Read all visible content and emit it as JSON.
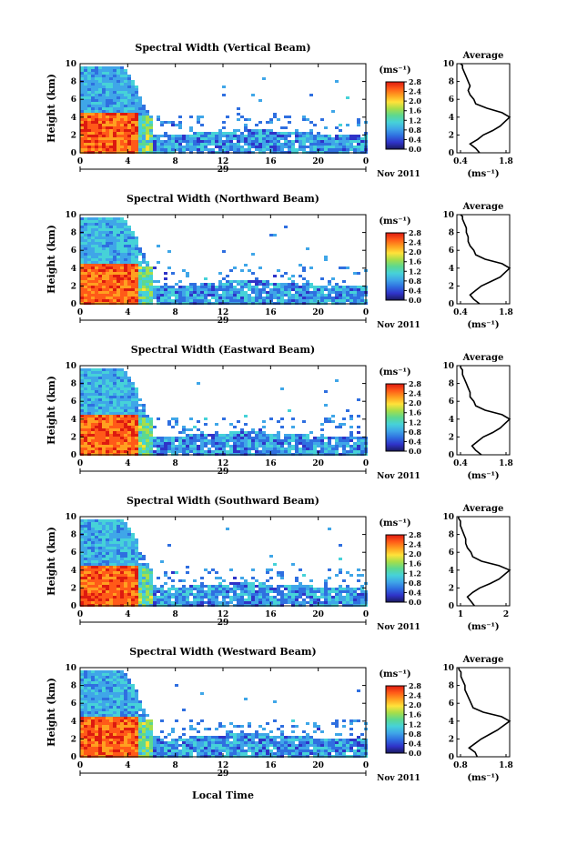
{
  "figure": {
    "xlabel": "Local Time",
    "date_suffix": "Nov 2011",
    "colorbar_unit": "(ms⁻¹)",
    "avg_title": "Average",
    "avg_unit": "(ms⁻¹)",
    "colorbar_ticks": [
      "2.8",
      "2.4",
      "2.0",
      "1.6",
      "1.2",
      "0.8",
      "0.4",
      "0.0"
    ],
    "colorbar_range": [
      0.0,
      2.8
    ],
    "colormap": [
      "#1a1a5e",
      "#2f33c8",
      "#2f6fe0",
      "#3fa6e8",
      "#46d2d8",
      "#5cd890",
      "#a6de4a",
      "#ffe23a",
      "#ffa020",
      "#ff5a18",
      "#dd1a10"
    ]
  },
  "chart_data": [
    {
      "type": "heatmap",
      "title": "Spectral Width (Vertical Beam)",
      "ylabel": "Height (km)",
      "xlabel": "Local Time",
      "x_ticks": [
        "0",
        "4",
        "8",
        "12",
        "16",
        "20",
        "0"
      ],
      "y_ticks": [
        "0",
        "2",
        "4",
        "6",
        "8",
        "10"
      ],
      "xlim": [
        0,
        24
      ],
      "ylim": [
        0,
        10
      ],
      "day_label": "29",
      "date_suffix": "Nov 2011",
      "colorbar_ticks": [
        "2.8",
        "2.4",
        "2.0",
        "1.6",
        "1.2",
        "0.8",
        "0.4",
        "0.0"
      ],
      "average_profile": {
        "xlim": [
          0.4,
          1.8
        ],
        "x_ticks": [
          "0.4",
          "1.8"
        ],
        "y_ticks": [
          "0",
          "2",
          "4",
          "6",
          "8",
          "10"
        ],
        "x": [
          1.0,
          0.9,
          0.75,
          0.95,
          1.1,
          1.35,
          1.55,
          1.8,
          1.6,
          1.2,
          0.9,
          0.85,
          0.75,
          0.7,
          0.75,
          0.7,
          0.65,
          0.6,
          0.55,
          0.55,
          0.5
        ],
        "y": [
          0,
          0.5,
          1,
          1.5,
          2,
          2.5,
          3,
          4,
          4.5,
          5,
          5.5,
          6,
          6.5,
          7,
          7.5,
          8,
          8.5,
          9,
          9.5,
          9.8,
          10
        ]
      }
    },
    {
      "type": "heatmap",
      "title": "Spectral Width (Northward Beam)",
      "ylabel": "Height (km)",
      "xlabel": "Local Time",
      "x_ticks": [
        "0",
        "4",
        "8",
        "12",
        "16",
        "20",
        "0"
      ],
      "y_ticks": [
        "0",
        "2",
        "4",
        "6",
        "8",
        "10"
      ],
      "xlim": [
        0,
        24
      ],
      "ylim": [
        0,
        10
      ],
      "day_label": "29",
      "date_suffix": "Nov 2011",
      "colorbar_ticks": [
        "2.8",
        "2.4",
        "2.0",
        "1.6",
        "1.2",
        "0.8",
        "0.4",
        "0.0"
      ],
      "average_profile": {
        "xlim": [
          0.4,
          1.8
        ],
        "x_ticks": [
          "0.4",
          "1.8"
        ],
        "y_ticks": [
          "0",
          "2",
          "4",
          "6",
          "8",
          "10"
        ],
        "x": [
          1.0,
          0.85,
          0.75,
          0.9,
          1.05,
          1.3,
          1.55,
          1.8,
          1.6,
          1.15,
          0.9,
          0.85,
          0.75,
          0.7,
          0.7,
          0.65,
          0.65,
          0.6,
          0.55,
          0.55,
          0.5
        ],
        "y": [
          0,
          0.5,
          1,
          1.5,
          2,
          2.5,
          3,
          4,
          4.5,
          5,
          5.5,
          6,
          6.5,
          7,
          7.5,
          8,
          8.5,
          9,
          9.5,
          9.8,
          10
        ]
      }
    },
    {
      "type": "heatmap",
      "title": "Spectral Width (Eastward Beam)",
      "ylabel": "Height (km)",
      "xlabel": "Local Time",
      "x_ticks": [
        "0",
        "4",
        "8",
        "12",
        "16",
        "20",
        "0"
      ],
      "y_ticks": [
        "0",
        "2",
        "4",
        "6",
        "8",
        "10"
      ],
      "xlim": [
        0,
        24
      ],
      "ylim": [
        0,
        10
      ],
      "day_label": "29",
      "date_suffix": "Nov 2011",
      "colorbar_ticks": [
        "2.8",
        "2.4",
        "2.0",
        "1.6",
        "1.2",
        "0.8",
        "0.4",
        "0.0"
      ],
      "average_profile": {
        "xlim": [
          0.4,
          1.8
        ],
        "x_ticks": [
          "0.4",
          "1.8"
        ],
        "y_ticks": [
          "0",
          "2",
          "4",
          "6",
          "8",
          "10"
        ],
        "x": [
          1.05,
          0.9,
          0.8,
          0.95,
          1.1,
          1.35,
          1.55,
          1.8,
          1.6,
          1.15,
          0.9,
          0.85,
          0.75,
          0.75,
          0.7,
          0.65,
          0.6,
          0.55,
          0.55,
          0.5,
          0.5
        ],
        "y": [
          0,
          0.5,
          1,
          1.5,
          2,
          2.5,
          3,
          4,
          4.5,
          5,
          5.5,
          6,
          6.5,
          7,
          7.5,
          8,
          8.5,
          9,
          9.5,
          9.8,
          10
        ]
      }
    },
    {
      "type": "heatmap",
      "title": "Spectral Width (Southward Beam)",
      "ylabel": "Height (km)",
      "xlabel": "Local Time",
      "x_ticks": [
        "0",
        "4",
        "8",
        "12",
        "16",
        "20",
        "0"
      ],
      "y_ticks": [
        "0",
        "2",
        "4",
        "6",
        "8",
        "10"
      ],
      "xlim": [
        0,
        24
      ],
      "ylim": [
        0,
        10
      ],
      "day_label": "29",
      "date_suffix": "Nov 2011",
      "colorbar_ticks": [
        "2.8",
        "2.4",
        "2.0",
        "1.6",
        "1.2",
        "0.8",
        "0.4",
        "0.0"
      ],
      "average_profile": {
        "xlim": [
          0.5,
          2.0
        ],
        "x_ticks": [
          "1",
          "2"
        ],
        "y_ticks": [
          "0",
          "2",
          "4",
          "6",
          "8",
          "10"
        ],
        "x": [
          1.0,
          0.9,
          0.8,
          0.95,
          1.15,
          1.45,
          1.7,
          2.0,
          1.7,
          1.2,
          0.95,
          0.9,
          0.8,
          0.75,
          0.75,
          0.7,
          0.65,
          0.6,
          0.6,
          0.55,
          0.55
        ],
        "y": [
          0,
          0.5,
          1,
          1.5,
          2,
          2.5,
          3,
          4,
          4.5,
          5,
          5.5,
          6,
          6.5,
          7,
          7.5,
          8,
          8.5,
          9,
          9.5,
          9.8,
          10
        ]
      }
    },
    {
      "type": "heatmap",
      "title": "Spectral Width (Westward Beam)",
      "ylabel": "Height (km)",
      "xlabel": "Local Time",
      "x_ticks": [
        "0",
        "4",
        "8",
        "12",
        "16",
        "20",
        "0"
      ],
      "y_ticks": [
        "0",
        "2",
        "4",
        "6",
        "8",
        "10"
      ],
      "xlim": [
        0,
        24
      ],
      "ylim": [
        0,
        10
      ],
      "day_label": "29",
      "date_suffix": "Nov 2011",
      "colorbar_ticks": [
        "2.8",
        "2.4",
        "2.0",
        "1.6",
        "1.2",
        "0.8",
        "0.4",
        "0.0"
      ],
      "average_profile": {
        "xlim": [
          0.5,
          1.8
        ],
        "x_ticks": [
          "0.8",
          "1.8"
        ],
        "y_ticks": [
          "0",
          "2",
          "4",
          "6",
          "8",
          "10"
        ],
        "x": [
          1.0,
          0.95,
          0.8,
          0.95,
          1.1,
          1.3,
          1.5,
          1.8,
          1.6,
          1.15,
          0.9,
          0.85,
          0.8,
          0.75,
          0.7,
          0.7,
          0.65,
          0.6,
          0.6,
          0.55,
          0.55
        ],
        "y": [
          0,
          0.5,
          1,
          1.5,
          2,
          2.5,
          3,
          4,
          4.5,
          5,
          5.5,
          6,
          6.5,
          7,
          7.5,
          8,
          8.5,
          9,
          9.5,
          9.8,
          10
        ]
      }
    }
  ]
}
